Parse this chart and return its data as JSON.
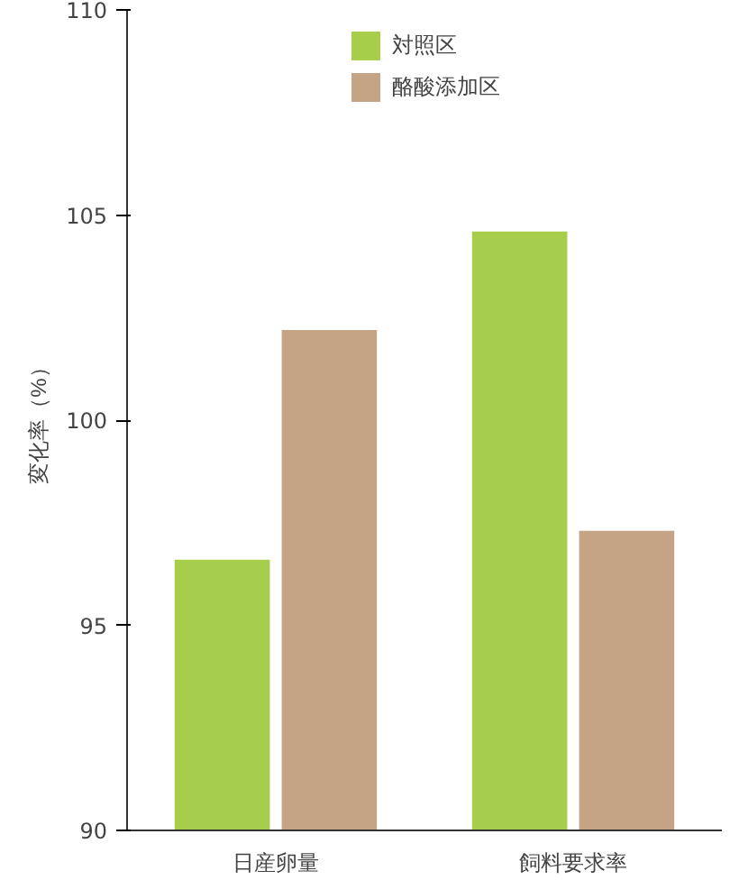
{
  "chart_data": {
    "type": "bar",
    "ylabel": "変化率（%）",
    "categories": [
      "日産卵量",
      "飼料要求率"
    ],
    "series": [
      {
        "name": "対照区",
        "color": "#a6ce4a",
        "values": [
          96.6,
          104.6
        ]
      },
      {
        "name": "酪酸添加区",
        "color": "#c4a484",
        "values": [
          102.2,
          97.3
        ]
      }
    ],
    "ylim": [
      90,
      110
    ],
    "yticks": [
      90,
      95,
      100,
      105,
      110
    ],
    "grid": false,
    "legend": "top"
  }
}
